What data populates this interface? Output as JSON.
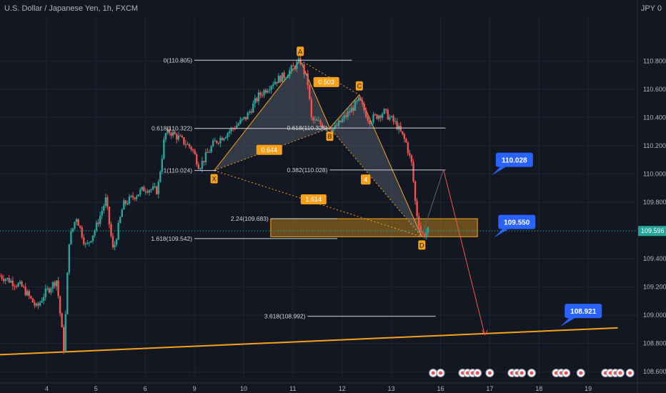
{
  "header": {
    "symbol_line": "U.S. Dollar / Japanese Yen, 1h, FXCM",
    "currency": "JPY 0"
  },
  "colors": {
    "background": "#131722",
    "up": "#26a69a",
    "down": "#ef5350",
    "pattern": "#f7a11a",
    "callout": "#2962ff",
    "zone": "#b07a1e",
    "price_tag": "#26a69a"
  },
  "chart_data": {
    "type": "candlestick",
    "x_ticks": [
      {
        "label": "4",
        "x": 4.0
      },
      {
        "label": "5",
        "x": 5.0
      },
      {
        "label": "6",
        "x": 6.0
      },
      {
        "label": "9",
        "x": 7.0
      },
      {
        "label": "10",
        "x": 8.0
      },
      {
        "label": "11",
        "x": 9.0
      },
      {
        "label": "12",
        "x": 10.0
      },
      {
        "label": "13",
        "x": 11.0
      },
      {
        "label": "16",
        "x": 12.0
      },
      {
        "label": "17",
        "x": 13.0
      },
      {
        "label": "18",
        "x": 14.0
      },
      {
        "label": "19",
        "x": 15.0
      }
    ],
    "y_ticks": [
      {
        "label": "110.800",
        "v": 110.8
      },
      {
        "label": "110.600",
        "v": 110.6
      },
      {
        "label": "110.400",
        "v": 110.4
      },
      {
        "label": "110.200",
        "v": 110.2
      },
      {
        "label": "110.000",
        "v": 110.0
      },
      {
        "label": "109.800",
        "v": 109.8
      },
      {
        "label": "109.600",
        "v": 109.6
      },
      {
        "label": "109.400",
        "v": 109.4
      },
      {
        "label": "109.200",
        "v": 109.2
      },
      {
        "label": "109.000",
        "v": 109.0
      },
      {
        "label": "108.800",
        "v": 108.8
      },
      {
        "label": "108.600",
        "v": 108.6
      }
    ],
    "ylim": [
      108.56,
      111.12
    ],
    "xlim": [
      3.05,
      16.0
    ],
    "current_price": {
      "label": "109.596",
      "value": 109.596
    },
    "path": [
      [
        3.05,
        109.28
      ],
      [
        3.5,
        109.2
      ],
      [
        3.8,
        109.05
      ],
      [
        3.95,
        109.15
      ],
      [
        4.2,
        109.25
      ],
      [
        4.35,
        108.75
      ],
      [
        4.45,
        109.52
      ],
      [
        4.6,
        109.7
      ],
      [
        4.8,
        109.48
      ],
      [
        5.0,
        109.62
      ],
      [
        5.2,
        109.82
      ],
      [
        5.35,
        109.45
      ],
      [
        5.55,
        109.78
      ],
      [
        5.8,
        109.85
      ],
      [
        6.0,
        109.9
      ],
      [
        6.25,
        109.88
      ],
      [
        6.4,
        110.28
      ],
      [
        6.5,
        110.3
      ],
      [
        6.7,
        110.25
      ],
      [
        6.95,
        110.18
      ],
      [
        7.1,
        110.05
      ],
      [
        7.4,
        110.22
      ],
      [
        7.7,
        110.3
      ],
      [
        8.05,
        110.4
      ],
      [
        8.3,
        110.55
      ],
      [
        8.6,
        110.65
      ],
      [
        8.85,
        110.7
      ],
      [
        9.15,
        110.8
      ],
      [
        9.3,
        110.65
      ],
      [
        9.38,
        110.38
      ],
      [
        9.6,
        110.35
      ],
      [
        9.85,
        110.32
      ],
      [
        10.1,
        110.42
      ],
      [
        10.35,
        110.52
      ],
      [
        10.55,
        110.38
      ],
      [
        10.85,
        110.44
      ],
      [
        11.1,
        110.35
      ],
      [
        11.3,
        110.22
      ],
      [
        11.42,
        110.06
      ],
      [
        11.5,
        109.75
      ],
      [
        11.62,
        109.56
      ],
      [
        11.75,
        109.6
      ]
    ],
    "pattern": {
      "points": [
        {
          "label": "X",
          "x": 7.4,
          "v": 110.024
        },
        {
          "label": "A",
          "x": 9.15,
          "v": 110.805
        },
        {
          "label": "B",
          "x": 9.75,
          "v": 110.325
        },
        {
          "label": "C",
          "x": 10.35,
          "v": 110.56
        },
        {
          "label": "D",
          "x": 11.62,
          "v": 109.555
        }
      ],
      "ratios": [
        {
          "label": "0.503",
          "x": 9.68,
          "v": 110.65
        },
        {
          "label": "0.644",
          "x": 8.52,
          "v": 110.17
        },
        {
          "label": "1.614",
          "x": 9.42,
          "v": 109.82
        },
        {
          "label": "4",
          "x": 10.48,
          "v": 109.96
        }
      ]
    },
    "fib_levels": [
      {
        "label": "0(110.805)",
        "v": 110.805,
        "x0": 7.0,
        "x1": 10.2
      },
      {
        "label": "0.618(110.322)",
        "v": 110.322,
        "x0": 7.0,
        "x1": 9.75
      },
      {
        "label": "1(110.024)",
        "v": 110.024,
        "x0": 7.0,
        "x1": 7.45
      },
      {
        "label": "1.618(109.542)",
        "v": 109.542,
        "x0": 7.0,
        "x1": 9.9
      },
      {
        "label": "0.618(110.325)",
        "v": 110.325,
        "x0": 9.75,
        "x1": 12.1
      },
      {
        "label": "0.382(110.028)",
        "v": 110.028,
        "x0": 9.75,
        "x1": 12.1
      },
      {
        "label": "2.24(109.683)",
        "v": 109.683,
        "x0": 8.55,
        "x1": 9.9
      },
      {
        "label": "3.618(108.992)",
        "v": 108.992,
        "x0": 9.3,
        "x1": 11.9
      }
    ],
    "zone": {
      "x0": 8.55,
      "x1": 12.75,
      "v_top": 109.683,
      "v_bottom": 109.555
    },
    "trendline": {
      "x0": 3.05,
      "v0": 108.72,
      "x1": 15.6,
      "v1": 108.91
    },
    "projection": {
      "from_x": 11.62,
      "from_v": 109.56,
      "to_x": 12.06,
      "to_v": 110.03,
      "end_x": 12.9,
      "end_v": 108.86
    },
    "callouts": [
      {
        "label": "110.028",
        "x": 13.5,
        "v": 110.1
      },
      {
        "label": "109.550",
        "x": 13.55,
        "v": 109.66
      },
      {
        "label": "108.921",
        "x": 14.9,
        "v": 109.03
      }
    ],
    "event_icons": [
      11.85,
      12.0,
      12.45,
      12.55,
      12.65,
      12.75,
      13.0,
      13.45,
      13.55,
      13.65,
      13.85,
      14.35,
      14.45,
      14.55,
      14.85,
      15.35,
      15.45,
      15.55,
      15.65,
      15.85
    ]
  }
}
